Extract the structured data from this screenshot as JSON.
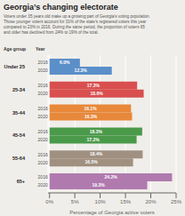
{
  "chart_data": {
    "type": "bar",
    "orientation": "horizontal",
    "title": "Georgia’s changing electorate",
    "subtitle": "Voters under 35 years old make up a growing part of Georgia’s voting population.\nThose younger voters account for 31% of the state’s registered voters this year\ncompared to 23% in 2016. During the same period, the proportion of voters 65\nand older has declined from 24% to 19% of the total.",
    "annotations": [
      "Age group",
      "Year"
    ],
    "categories": [
      "Under 25",
      "25-34",
      "35-44",
      "45-54",
      "55-64",
      "65+"
    ],
    "series": [
      {
        "name": "2016",
        "values": [
          6.0,
          17.3,
          16.1,
          18.3,
          18.4,
          24.2
        ],
        "value_labels": [
          "6.0%",
          "17.3%",
          "16.1%",
          "18.3%",
          "18.4%",
          "24.2%"
        ]
      },
      {
        "name": "2020",
        "values": [
          12.3,
          18.6,
          16.3,
          17.2,
          16.5,
          19.3
        ],
        "value_labels": [
          "12.3%",
          "18.6%",
          "16.3%",
          "17.2%",
          "16.5%",
          "19.3%"
        ]
      }
    ],
    "colors": [
      "#5b8fc9",
      "#d94f4f",
      "#e8883a",
      "#4a9a4a",
      "#a09080",
      "#b07aae"
    ],
    "xlim": [
      -0.3,
      25
    ],
    "xticks": [
      {
        "value": 0,
        "label": "0%"
      },
      {
        "value": 5,
        "label": "5%"
      },
      {
        "value": 10,
        "label": "10%"
      },
      {
        "value": 15,
        "label": "15%"
      },
      {
        "value": 20,
        "label": "20%"
      },
      {
        "value": 25,
        "label": "25%"
      }
    ],
    "xlabel": "Percentage of Georgia active voters",
    "grid": true,
    "data_labels": true,
    "background_color": "#f0eeea"
  }
}
